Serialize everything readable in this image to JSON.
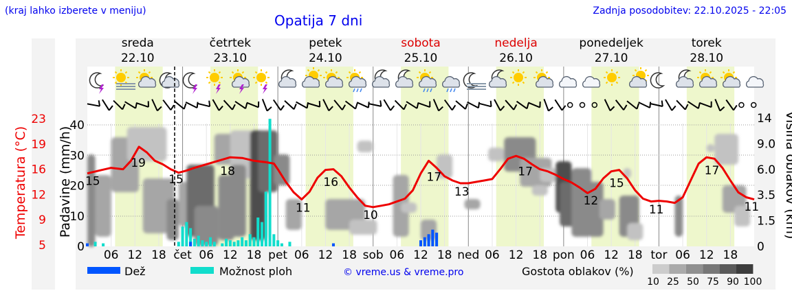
{
  "header": {
    "region_note": "(kraj lahko izberete v meniju)",
    "title": "Opatija 7 dni",
    "updated": "Zadnja posodobitev: 22.10.2025 - 22:05",
    "credit": "© vreme.us & vreme.pro"
  },
  "colors": {
    "temperature": "#ee0000",
    "rain": "#0055ff",
    "shower": "#11ddcc",
    "day_band": "#eef7cc",
    "weekend": "#dd0000",
    "link": "#0000ee"
  },
  "days": [
    {
      "name": "sreda",
      "date": "22.10",
      "weekend": false
    },
    {
      "name": "četrtek",
      "date": "23.10",
      "weekend": false
    },
    {
      "name": "petek",
      "date": "24.10",
      "weekend": false
    },
    {
      "name": "sobota",
      "date": "25.10",
      "weekend": true
    },
    {
      "name": "nedelja",
      "date": "26.10",
      "weekend": true
    },
    {
      "name": "ponedeljek",
      "date": "27.10",
      "weekend": false
    },
    {
      "name": "torek",
      "date": "28.10",
      "weekend": false
    }
  ],
  "legend": {
    "rain": "Dež",
    "shower": "Možnost ploh",
    "cloud_title": "Gostota oblakov (%)",
    "cloud_levels": [
      "10",
      "25",
      "50",
      "75",
      "90",
      "100"
    ],
    "cloud_colors": [
      "#cccccc",
      "#aaaaaa",
      "#909090",
      "#777777",
      "#5a5a5a",
      "#3d3d3d"
    ]
  },
  "weather_icons": [
    "moon-lightning-icon",
    "sun-fog-icon",
    "sun-cloud-icon",
    "moon-cloud-icon",
    "moon-lightning-icon",
    "sun-lightning-icon",
    "sun-cloud-lightning-icon",
    "sun-lightning-icon",
    "cloud-moon-icon",
    "cloud-sun-icon",
    "sun-cloud-icon",
    "sun-cloud-rain-icon",
    "cloud-moon-icon",
    "cloud-moon-icon",
    "sun-cloud-rain-icon",
    "cloud-rain-icon",
    "moon-fog-icon",
    "cloud-moon-icon",
    "sun-icon",
    "sun-cloud-icon",
    "cloud-icon",
    "cloud-icon",
    "sun-icon",
    "cloud-sun-icon",
    "moon-icon",
    "cloud-moon-icon",
    "sun-cloud-icon",
    "sun-cloud-icon",
    "cloud-icon"
  ],
  "chart_data": {
    "type": "line",
    "x_unit": "hour",
    "x_range": [
      0,
      168
    ],
    "now_hour": 22,
    "x_ticks": [
      {
        "hour": 6,
        "label": "06"
      },
      {
        "hour": 12,
        "label": "12"
      },
      {
        "hour": 18,
        "label": "18"
      },
      {
        "hour": 24,
        "label": "čet"
      },
      {
        "hour": 30,
        "label": "06"
      },
      {
        "hour": 36,
        "label": "12"
      },
      {
        "hour": 42,
        "label": "18"
      },
      {
        "hour": 48,
        "label": "pet"
      },
      {
        "hour": 54,
        "label": "06"
      },
      {
        "hour": 60,
        "label": "12"
      },
      {
        "hour": 66,
        "label": "18"
      },
      {
        "hour": 72,
        "label": "sob"
      },
      {
        "hour": 78,
        "label": "06"
      },
      {
        "hour": 84,
        "label": "12"
      },
      {
        "hour": 90,
        "label": "18"
      },
      {
        "hour": 96,
        "label": "ned"
      },
      {
        "hour": 102,
        "label": "06"
      },
      {
        "hour": 108,
        "label": "12"
      },
      {
        "hour": 114,
        "label": "18"
      },
      {
        "hour": 120,
        "label": "pon"
      },
      {
        "hour": 126,
        "label": "06"
      },
      {
        "hour": 132,
        "label": "12"
      },
      {
        "hour": 138,
        "label": "18"
      },
      {
        "hour": 144,
        "label": "tor"
      },
      {
        "hour": 150,
        "label": "06"
      },
      {
        "hour": 156,
        "label": "12"
      },
      {
        "hour": 162,
        "label": "18"
      }
    ],
    "axes": {
      "temperature": {
        "label": "Temperatura (°C)",
        "ticks": [
          "5",
          "9",
          "12",
          "16",
          "19",
          "23"
        ],
        "range": [
          5,
          23
        ]
      },
      "precipitation": {
        "label": "Padavine (mm/h)",
        "ticks": [
          "0",
          "10",
          "20",
          "30",
          "40"
        ],
        "range": [
          0,
          40
        ]
      },
      "cloud_height": {
        "label": "Višina oblakov (km)",
        "ticks": [
          "0",
          "1.5",
          "3.5",
          "6.0",
          "9.0",
          "14"
        ]
      }
    },
    "grid": true,
    "temperature": {
      "name": "Temperatura",
      "points": [
        [
          0,
          15.2
        ],
        [
          3,
          15.6
        ],
        [
          6,
          16.0
        ],
        [
          9,
          15.8
        ],
        [
          11,
          17.0
        ],
        [
          13,
          19.0
        ],
        [
          15,
          18.2
        ],
        [
          17,
          17.0
        ],
        [
          19,
          16.5
        ],
        [
          21,
          15.8
        ],
        [
          23,
          15.3
        ],
        [
          25,
          15.6
        ],
        [
          27,
          16.0
        ],
        [
          30,
          16.5
        ],
        [
          33,
          17.0
        ],
        [
          36,
          17.5
        ],
        [
          39,
          17.4
        ],
        [
          42,
          17.0
        ],
        [
          45,
          16.8
        ],
        [
          47,
          16.6
        ],
        [
          48,
          15.8
        ],
        [
          50,
          14.0
        ],
        [
          52,
          12.5
        ],
        [
          54,
          11.5
        ],
        [
          56,
          12.6
        ],
        [
          58,
          14.6
        ],
        [
          60,
          15.7
        ],
        [
          62,
          15.8
        ],
        [
          64,
          14.8
        ],
        [
          66,
          13.2
        ],
        [
          68,
          11.8
        ],
        [
          70,
          10.6
        ],
        [
          72,
          10.4
        ],
        [
          74,
          10.6
        ],
        [
          76,
          10.8
        ],
        [
          78,
          11.2
        ],
        [
          80,
          11.6
        ],
        [
          82,
          12.8
        ],
        [
          84,
          15.2
        ],
        [
          86,
          17.0
        ],
        [
          88,
          16.0
        ],
        [
          90,
          14.8
        ],
        [
          92,
          14.2
        ],
        [
          94,
          13.8
        ],
        [
          96,
          13.8
        ],
        [
          98,
          14.0
        ],
        [
          100,
          14.2
        ],
        [
          102,
          14.4
        ],
        [
          104,
          15.8
        ],
        [
          106,
          17.3
        ],
        [
          108,
          17.7
        ],
        [
          110,
          17.3
        ],
        [
          112,
          16.5
        ],
        [
          114,
          15.8
        ],
        [
          116,
          15.5
        ],
        [
          118,
          15.0
        ],
        [
          120,
          14.4
        ],
        [
          122,
          13.9
        ],
        [
          124,
          13.2
        ],
        [
          126,
          12.4
        ],
        [
          128,
          13.0
        ],
        [
          130,
          14.5
        ],
        [
          132,
          15.5
        ],
        [
          134,
          15.7
        ],
        [
          136,
          14.5
        ],
        [
          138,
          12.8
        ],
        [
          140,
          11.6
        ],
        [
          142,
          11.2
        ],
        [
          144,
          11.3
        ],
        [
          146,
          11.2
        ],
        [
          148,
          11.0
        ],
        [
          150,
          11.8
        ],
        [
          152,
          14.2
        ],
        [
          154,
          16.6
        ],
        [
          156,
          17.5
        ],
        [
          158,
          17.3
        ],
        [
          160,
          16.0
        ],
        [
          162,
          14.2
        ],
        [
          164,
          12.5
        ],
        [
          166,
          11.8
        ],
        [
          168,
          11.5
        ]
      ]
    },
    "temperature_labels": [
      {
        "hour": 1,
        "value": "15"
      },
      {
        "hour": 12.5,
        "value": "19"
      },
      {
        "hour": 22,
        "value": "15"
      },
      {
        "hour": 35,
        "value": "18"
      },
      {
        "hour": 54,
        "value": "11"
      },
      {
        "hour": 61,
        "value": "16"
      },
      {
        "hour": 71,
        "value": "10"
      },
      {
        "hour": 87,
        "value": "17"
      },
      {
        "hour": 94,
        "value": "13"
      },
      {
        "hour": 110,
        "value": "17"
      },
      {
        "hour": 126.5,
        "value": "12"
      },
      {
        "hour": 133,
        "value": "15"
      },
      {
        "hour": 143,
        "value": "11"
      },
      {
        "hour": 157,
        "value": "17"
      },
      {
        "hour": 167,
        "value": "11"
      }
    ],
    "rain": {
      "name": "Dež",
      "points": [
        [
          0,
          1.0
        ],
        [
          26,
          1.5
        ],
        [
          62,
          1.0
        ],
        [
          84,
          2.0
        ],
        [
          85,
          3.0
        ],
        [
          86,
          4.0
        ],
        [
          87,
          5.5
        ],
        [
          88,
          4.5
        ]
      ]
    },
    "shower_chance": {
      "name": "Možnost ploh",
      "points": [
        [
          2,
          1.5
        ],
        [
          4,
          1.0
        ],
        [
          23,
          1.5
        ],
        [
          24,
          6.5
        ],
        [
          25,
          8.0
        ],
        [
          26,
          6.0
        ],
        [
          27,
          2.5
        ],
        [
          28,
          3.5
        ],
        [
          29,
          2.0
        ],
        [
          30,
          1.5
        ],
        [
          31,
          3.0
        ],
        [
          32,
          1.5
        ],
        [
          34,
          1.0
        ],
        [
          35,
          2.5
        ],
        [
          36,
          2.0
        ],
        [
          37,
          1.5
        ],
        [
          38,
          2.0
        ],
        [
          39,
          3.0
        ],
        [
          40,
          2.0
        ],
        [
          41,
          4.0
        ],
        [
          42,
          3.0
        ],
        [
          43,
          9.5
        ],
        [
          44,
          8.0
        ],
        [
          45,
          18.0
        ],
        [
          46,
          42.0
        ],
        [
          47,
          4.0
        ],
        [
          48,
          2.0
        ],
        [
          49,
          1.0
        ],
        [
          51,
          1.5
        ]
      ]
    }
  }
}
